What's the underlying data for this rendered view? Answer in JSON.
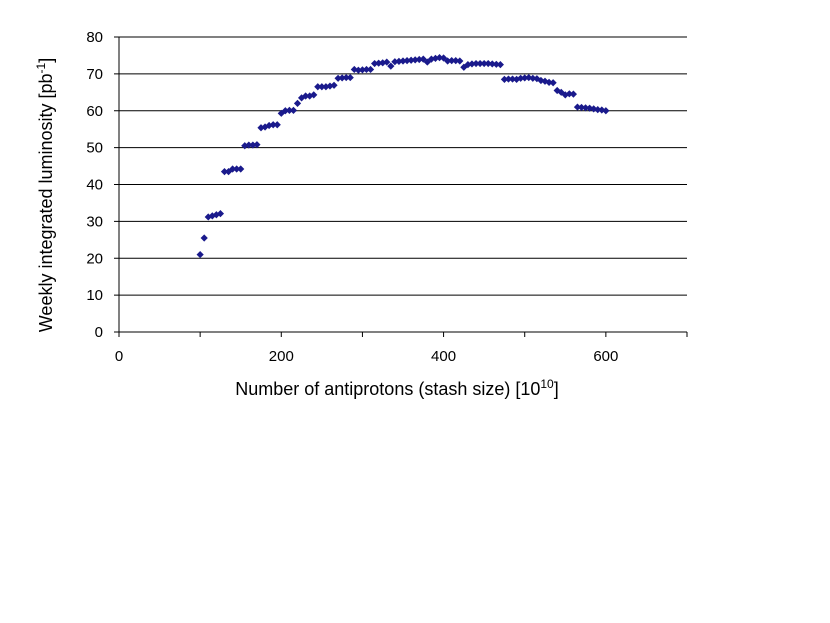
{
  "chart_data": {
    "type": "scatter",
    "title": "",
    "xlabel": "Number of antiprotons (stash size) [10",
    "xlabel_sup": "10",
    "xlabel_end": "]",
    "ylabel": "Weekly integrated luminosity [pb",
    "ylabel_sup": "-1",
    "ylabel_end": "]",
    "xlim": [
      0,
      700
    ],
    "ylim": [
      0,
      80
    ],
    "x_ticks": [
      0,
      200,
      400,
      600
    ],
    "y_ticks": [
      0,
      10,
      20,
      30,
      40,
      50,
      60,
      70,
      80
    ],
    "grid": "horizontal",
    "marker_color": "#1a1a8c",
    "grid_color": "#000000",
    "series": [
      {
        "points": [
          [
            100,
            21
          ],
          [
            105,
            25.5
          ],
          [
            110,
            31.2
          ],
          [
            115,
            31.5
          ],
          [
            120,
            31.8
          ],
          [
            125,
            32.1
          ],
          [
            130,
            43.5
          ],
          [
            135,
            43.5
          ],
          [
            140,
            44.2
          ],
          [
            145,
            44.2
          ],
          [
            150,
            44.2
          ],
          [
            155,
            50.5
          ],
          [
            160,
            50.7
          ],
          [
            165,
            50.7
          ],
          [
            170,
            50.8
          ],
          [
            175,
            55.4
          ],
          [
            180,
            55.6
          ],
          [
            185,
            56
          ],
          [
            190,
            56.2
          ],
          [
            195,
            56.2
          ],
          [
            200,
            59.3
          ],
          [
            205,
            60
          ],
          [
            210,
            60.1
          ],
          [
            215,
            60.1
          ],
          [
            220,
            62
          ],
          [
            225,
            63.5
          ],
          [
            230,
            64
          ],
          [
            235,
            64
          ],
          [
            240,
            64.3
          ],
          [
            245,
            66.5
          ],
          [
            250,
            66.5
          ],
          [
            255,
            66.5
          ],
          [
            260,
            66.7
          ],
          [
            265,
            66.9
          ],
          [
            270,
            68.8
          ],
          [
            275,
            68.9
          ],
          [
            280,
            69
          ],
          [
            285,
            69
          ],
          [
            290,
            71.2
          ],
          [
            295,
            71
          ],
          [
            300,
            71.1
          ],
          [
            305,
            71.2
          ],
          [
            310,
            71.2
          ],
          [
            315,
            72.8
          ],
          [
            320,
            72.9
          ],
          [
            325,
            73
          ],
          [
            330,
            73.2
          ],
          [
            335,
            72.1
          ],
          [
            340,
            73.3
          ],
          [
            345,
            73.4
          ],
          [
            350,
            73.5
          ],
          [
            355,
            73.6
          ],
          [
            360,
            73.7
          ],
          [
            365,
            73.8
          ],
          [
            370,
            73.9
          ],
          [
            375,
            74
          ],
          [
            380,
            73.2
          ],
          [
            385,
            74
          ],
          [
            390,
            74.2
          ],
          [
            395,
            74.4
          ],
          [
            400,
            74.3
          ],
          [
            405,
            73.5
          ],
          [
            410,
            73.6
          ],
          [
            415,
            73.6
          ],
          [
            420,
            73.5
          ],
          [
            425,
            71.8
          ],
          [
            430,
            72.5
          ],
          [
            435,
            72.7
          ],
          [
            440,
            72.8
          ],
          [
            445,
            72.8
          ],
          [
            450,
            72.8
          ],
          [
            455,
            72.8
          ],
          [
            460,
            72.7
          ],
          [
            465,
            72.6
          ],
          [
            470,
            72.5
          ],
          [
            475,
            68.5
          ],
          [
            480,
            68.6
          ],
          [
            485,
            68.6
          ],
          [
            490,
            68.5
          ],
          [
            495,
            68.8
          ],
          [
            500,
            68.9
          ],
          [
            505,
            69
          ],
          [
            510,
            68.8
          ],
          [
            515,
            68.7
          ],
          [
            520,
            68.2
          ],
          [
            525,
            68
          ],
          [
            530,
            67.7
          ],
          [
            535,
            67.6
          ],
          [
            540,
            65.5
          ],
          [
            545,
            65
          ],
          [
            550,
            64.3
          ],
          [
            555,
            64.6
          ],
          [
            560,
            64.5
          ],
          [
            565,
            61
          ],
          [
            570,
            60.9
          ],
          [
            575,
            60.8
          ],
          [
            580,
            60.7
          ],
          [
            585,
            60.5
          ],
          [
            590,
            60.3
          ],
          [
            595,
            60.2
          ],
          [
            600,
            60
          ]
        ]
      }
    ]
  }
}
